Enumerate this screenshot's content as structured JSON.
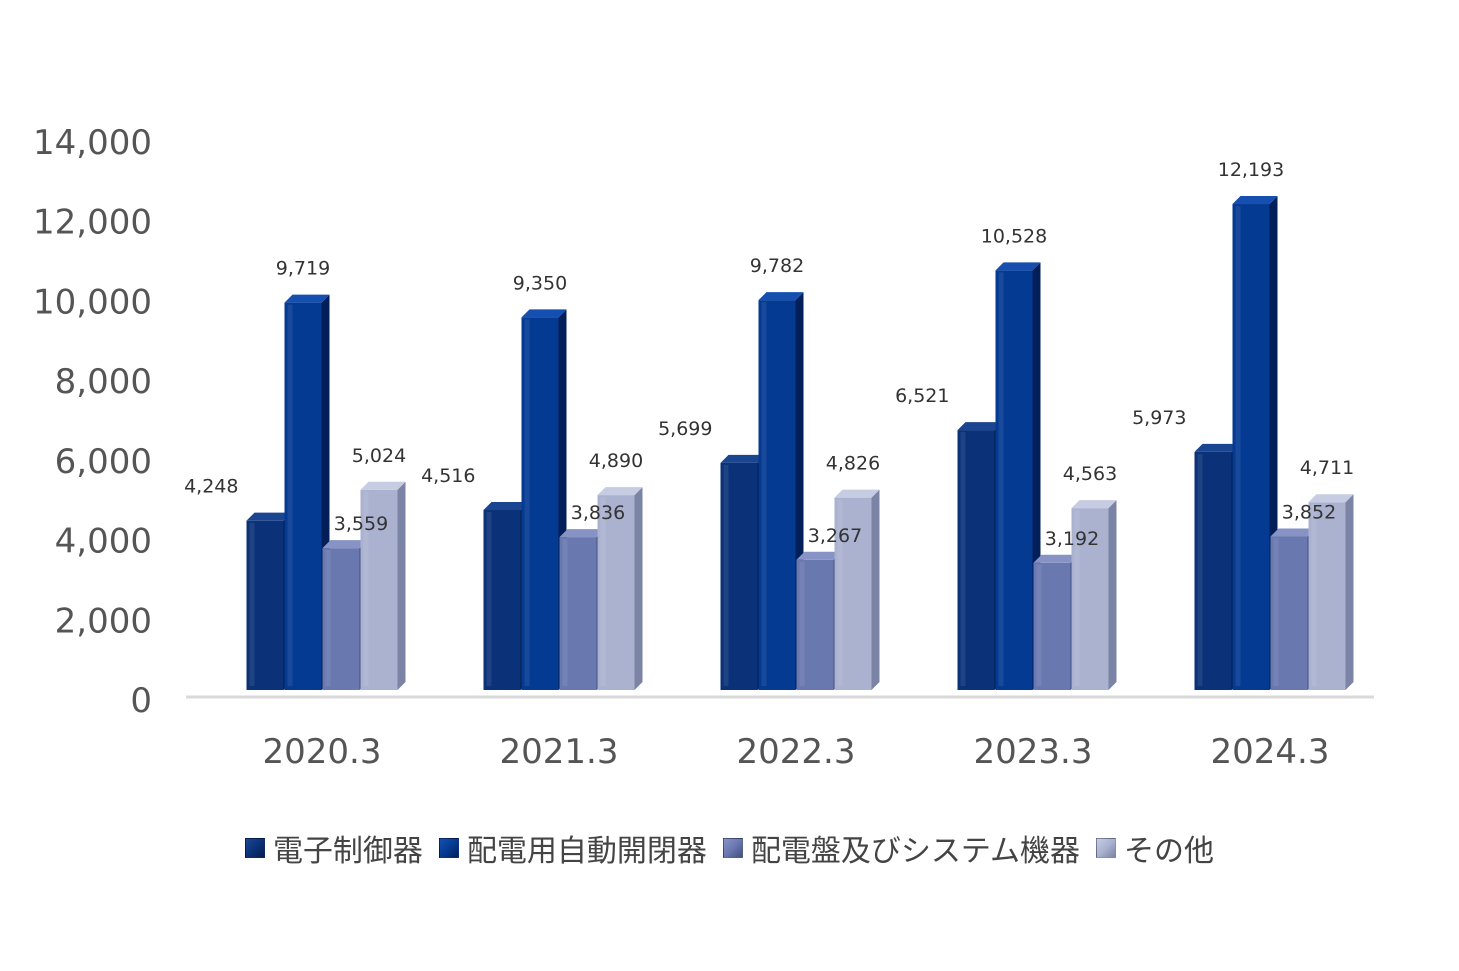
{
  "chart_data": {
    "type": "bar",
    "categories": [
      "2020.3",
      "2021.3",
      "2022.3",
      "2023.3",
      "2024.3"
    ],
    "series": [
      {
        "name": "電子制御器",
        "values": [
          4248,
          4516,
          5699,
          6521,
          5973
        ],
        "labels": [
          "4,248",
          "4,516",
          "5,699",
          "6,521",
          "5,973"
        ]
      },
      {
        "name": "配電用自動開閉器",
        "values": [
          9719,
          9350,
          9782,
          10528,
          12193
        ],
        "labels": [
          "9,719",
          "9,350",
          "9,782",
          "10,528",
          "12,193"
        ]
      },
      {
        "name": "配電盤及びシステム機器",
        "values": [
          3559,
          3836,
          3267,
          3192,
          3852
        ],
        "labels": [
          "3,559",
          "3,836",
          "3,267",
          "3,192",
          "3,852"
        ]
      },
      {
        "name": "その他",
        "values": [
          5024,
          4890,
          4826,
          4563,
          4711
        ],
        "labels": [
          "5,024",
          "4,890",
          "4,826",
          "4,563",
          "4,711"
        ]
      }
    ],
    "yticks": [
      "0",
      "2,000",
      "4,000",
      "6,000",
      "8,000",
      "10,000",
      "12,000",
      "14,000"
    ],
    "ylim": [
      0,
      14000
    ],
    "colors": {
      "front": [
        "#0b3278",
        "#053a92",
        "#6a78b0",
        "#aab2d0"
      ],
      "side": [
        "#051d4d",
        "#021f5a",
        "#434f82",
        "#7c84a6"
      ],
      "top": [
        "#1a4590",
        "#1550b0",
        "#8693c4",
        "#c6cce2"
      ],
      "axis": "#d9d9d9"
    },
    "grid": false,
    "legend_position": "bottom"
  }
}
